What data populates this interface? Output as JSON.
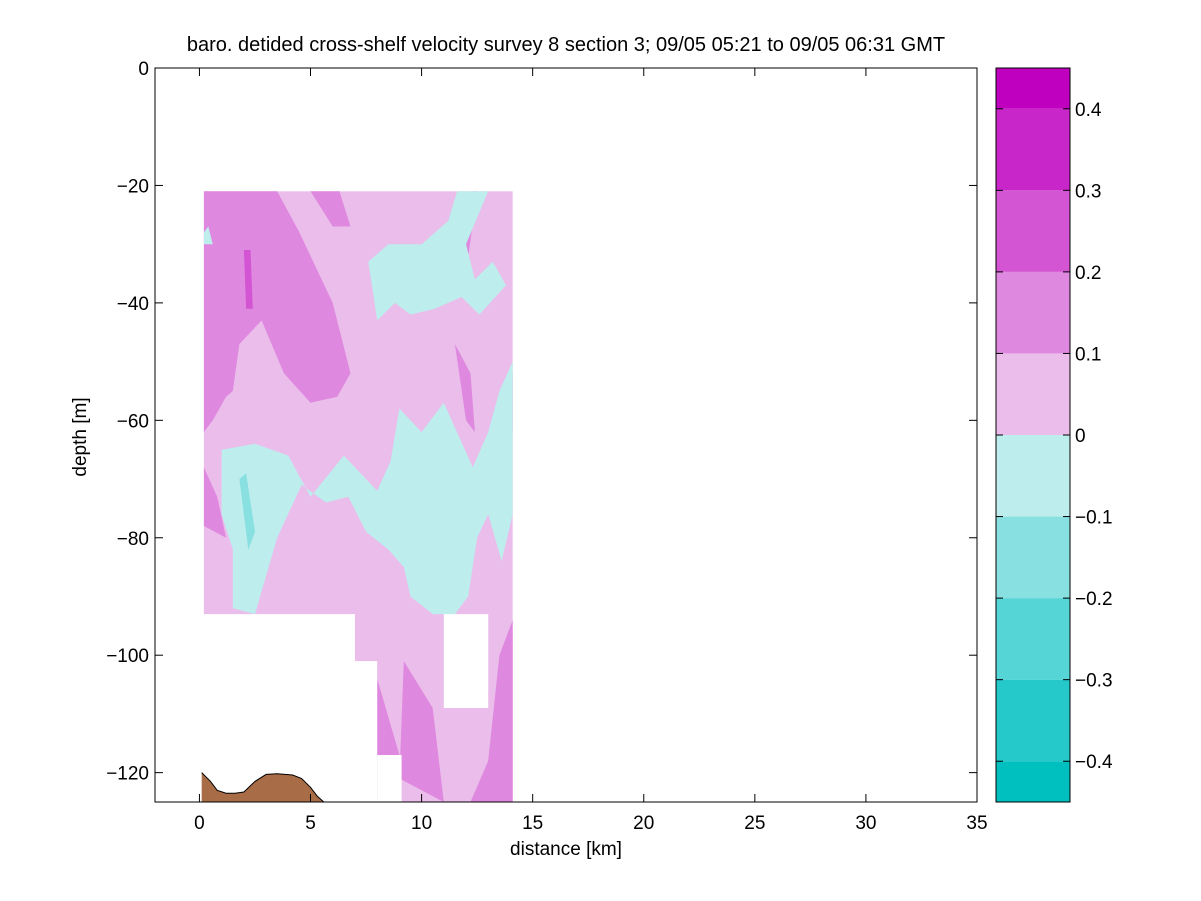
{
  "chart_data": {
    "type": "heatmap",
    "title": "baro. detided cross-shelf velocity survey 8 section 3; 09/05 05:21 to 09/05 06:31 GMT",
    "xlabel": "distance [km]",
    "ylabel": "depth [m]",
    "xlim": [
      -2,
      35
    ],
    "ylim": [
      -125,
      0
    ],
    "x_ticks": [
      0,
      5,
      10,
      15,
      20,
      25,
      30,
      35
    ],
    "y_ticks": [
      0,
      -20,
      -40,
      -60,
      -80,
      -100,
      -120
    ],
    "colorbar": {
      "range": [
        -0.45,
        0.45
      ],
      "ticks": [
        -0.4,
        -0.3,
        -0.2,
        -0.1,
        0,
        0.1,
        0.2,
        0.3,
        0.4
      ],
      "tick_labels": [
        "−0.4",
        "−0.3",
        "−0.2",
        "−0.1",
        "0",
        "0.1",
        "0.2",
        "0.3",
        "0.4"
      ],
      "levels": [
        {
          "lo": -0.45,
          "hi": -0.4,
          "color": "#00bfbf"
        },
        {
          "lo": -0.4,
          "hi": -0.3,
          "color": "#26c9c9"
        },
        {
          "lo": -0.3,
          "hi": -0.2,
          "color": "#55d5d5"
        },
        {
          "lo": -0.2,
          "hi": -0.1,
          "color": "#88e0e0"
        },
        {
          "lo": -0.1,
          "hi": 0.0,
          "color": "#bdeded"
        },
        {
          "lo": 0.0,
          "hi": 0.1,
          "color": "#ebbdeb"
        },
        {
          "lo": 0.1,
          "hi": 0.2,
          "color": "#df88df"
        },
        {
          "lo": 0.2,
          "hi": 0.3,
          "color": "#d455d4"
        },
        {
          "lo": 0.3,
          "hi": 0.4,
          "color": "#c926c9"
        },
        {
          "lo": 0.4,
          "hi": 0.45,
          "color": "#bf00bf"
        }
      ]
    },
    "data_region": {
      "x": [
        0.2,
        14.1
      ],
      "depth": [
        -21,
        -125
      ]
    },
    "background_level": 0.05,
    "blanked_regions": [
      {
        "x": [
          0.1,
          7.0
        ],
        "depth": [
          -93,
          -125
        ]
      },
      {
        "x": [
          7.0,
          8.0
        ],
        "depth": [
          -101,
          -125
        ]
      },
      {
        "x": [
          8.0,
          9.1
        ],
        "depth": [
          -117,
          -125
        ]
      },
      {
        "x": [
          11.0,
          13.0
        ],
        "depth": [
          -93,
          -109
        ]
      }
    ],
    "regions": [
      {
        "level": 0.15,
        "points": [
          [
            0.2,
            -21
          ],
          [
            3.5,
            -21
          ],
          [
            4.5,
            -28
          ],
          [
            6.0,
            -40
          ],
          [
            6.8,
            -52
          ],
          [
            6.2,
            -56
          ],
          [
            5.0,
            -57
          ],
          [
            3.8,
            -52
          ],
          [
            2.8,
            -43
          ],
          [
            1.8,
            -47
          ],
          [
            1.5,
            -55
          ],
          [
            1.2,
            -56
          ],
          [
            0.6,
            -60
          ],
          [
            0.2,
            -62
          ]
        ]
      },
      {
        "level": 0.15,
        "points": [
          [
            5.0,
            -21
          ],
          [
            6.3,
            -21
          ],
          [
            6.8,
            -27
          ],
          [
            6.0,
            -27
          ]
        ]
      },
      {
        "level": 0.15,
        "points": [
          [
            11.5,
            -26
          ],
          [
            12.3,
            -21
          ],
          [
            12.5,
            -21
          ],
          [
            12.0,
            -35
          ],
          [
            11.2,
            -30
          ]
        ]
      },
      {
        "level": 0.15,
        "points": [
          [
            11.5,
            -47
          ],
          [
            12.2,
            -52
          ],
          [
            12.4,
            -62
          ],
          [
            12.0,
            -60
          ]
        ]
      },
      {
        "level": 0.15,
        "points": [
          [
            9.0,
            -121
          ],
          [
            9.2,
            -101
          ],
          [
            10.5,
            -109
          ],
          [
            11.0,
            -125
          ]
        ]
      },
      {
        "level": 0.15,
        "points": [
          [
            12.2,
            -125
          ],
          [
            13.0,
            -118
          ],
          [
            13.5,
            -125
          ]
        ]
      },
      {
        "level": 0.15,
        "points": [
          [
            13.9,
            -55
          ],
          [
            14.1,
            -52
          ],
          [
            14.1,
            -62
          ],
          [
            13.9,
            -60
          ]
        ]
      },
      {
        "level": 0.15,
        "points": [
          [
            12.8,
            -125
          ],
          [
            13.5,
            -100
          ],
          [
            14.1,
            -94
          ],
          [
            14.1,
            -125
          ]
        ]
      },
      {
        "level": 0.15,
        "points": [
          [
            8.0,
            -125
          ],
          [
            8.0,
            -104
          ],
          [
            9.0,
            -117
          ],
          [
            9.1,
            -125
          ]
        ]
      },
      {
        "level": 0.15,
        "points": [
          [
            0.2,
            -68
          ],
          [
            0.8,
            -73
          ],
          [
            1.2,
            -80
          ],
          [
            0.2,
            -78
          ]
        ]
      },
      {
        "level": 0.25,
        "points": [
          [
            2.0,
            -31
          ],
          [
            2.3,
            -31
          ],
          [
            2.4,
            -41
          ],
          [
            2.1,
            -41
          ]
        ]
      },
      {
        "level": -0.05,
        "points": [
          [
            7.6,
            -33
          ],
          [
            8.5,
            -30
          ],
          [
            10.0,
            -30
          ],
          [
            11.2,
            -26
          ],
          [
            11.6,
            -21
          ],
          [
            13.0,
            -21
          ],
          [
            12.0,
            -30
          ],
          [
            12.4,
            -36
          ],
          [
            13.2,
            -33
          ],
          [
            13.8,
            -37
          ],
          [
            12.6,
            -42
          ],
          [
            11.8,
            -39
          ],
          [
            10.6,
            -41
          ],
          [
            9.5,
            -42
          ],
          [
            8.8,
            -40
          ],
          [
            8.0,
            -43
          ]
        ]
      },
      {
        "level": -0.05,
        "points": [
          [
            1.0,
            -65
          ],
          [
            2.5,
            -64
          ],
          [
            4.0,
            -66
          ],
          [
            5.0,
            -73
          ],
          [
            6.5,
            -66
          ],
          [
            8.0,
            -72
          ],
          [
            8.6,
            -67
          ],
          [
            9.0,
            -58
          ],
          [
            10.0,
            -62
          ],
          [
            11.0,
            -57
          ],
          [
            12.3,
            -68
          ],
          [
            13.0,
            -62
          ],
          [
            13.5,
            -55
          ],
          [
            14.1,
            -50
          ],
          [
            14.1,
            -76
          ],
          [
            13.6,
            -84
          ],
          [
            13.0,
            -76
          ],
          [
            12.5,
            -80
          ],
          [
            12.1,
            -90
          ],
          [
            11.5,
            -93
          ],
          [
            10.5,
            -93
          ],
          [
            9.5,
            -90
          ],
          [
            9.2,
            -85
          ],
          [
            8.5,
            -82
          ],
          [
            7.5,
            -79
          ],
          [
            6.7,
            -73
          ],
          [
            5.7,
            -74
          ],
          [
            4.6,
            -71
          ],
          [
            3.5,
            -80
          ],
          [
            2.5,
            -93
          ],
          [
            1.5,
            -92
          ],
          [
            1.5,
            -82
          ],
          [
            1.0,
            -76
          ]
        ]
      },
      {
        "level": -0.05,
        "points": [
          [
            0.2,
            -30
          ],
          [
            0.6,
            -30
          ],
          [
            0.4,
            -27
          ],
          [
            0.2,
            -28
          ]
        ]
      },
      {
        "level": -0.15,
        "points": [
          [
            1.8,
            -70
          ],
          [
            2.1,
            -69
          ],
          [
            2.5,
            -79
          ],
          [
            2.2,
            -82
          ]
        ]
      }
    ],
    "bathymetry": {
      "color": "#a86c46",
      "outline": [
        [
          0.1,
          -120
        ],
        [
          0.5,
          -121.5
        ],
        [
          0.8,
          -123
        ],
        [
          1.2,
          -123.5
        ],
        [
          1.6,
          -123.5
        ],
        [
          2.0,
          -123.3
        ],
        [
          2.5,
          -121.5
        ],
        [
          3.0,
          -120.3
        ],
        [
          3.5,
          -120.2
        ],
        [
          4.2,
          -120.4
        ],
        [
          4.6,
          -121
        ],
        [
          5.0,
          -122.5
        ],
        [
          5.3,
          -124
        ],
        [
          5.6,
          -125
        ]
      ]
    }
  }
}
